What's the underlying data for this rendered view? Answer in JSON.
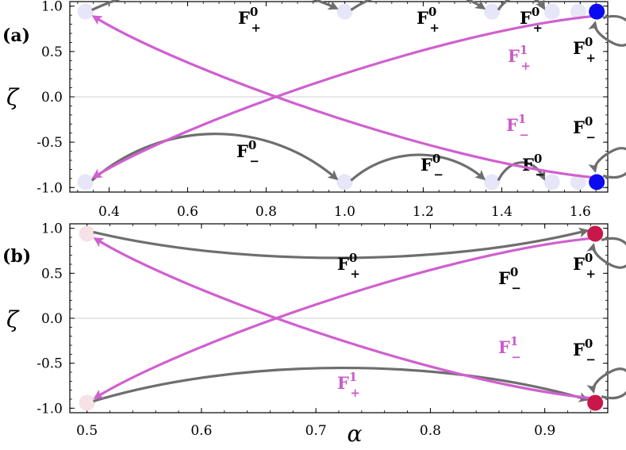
{
  "chart_data": [
    {
      "type": "scatter",
      "panel": "(a)",
      "xlabel": "",
      "ylabel": "ζ",
      "xlim": [
        0.3,
        1.67
      ],
      "ylim": [
        -1.05,
        1.05
      ],
      "xticks": [
        "0.4",
        "0.6",
        "0.8",
        "1.0",
        "1.2",
        "1.4",
        "1.6"
      ],
      "yticks": [
        "1.0",
        "0.5",
        "0.0",
        "-0.5",
        "-1.0"
      ],
      "color": "#0b0bf0",
      "faded_color": "#e6e6f8",
      "faded_points": [
        {
          "x": 0.34,
          "y": 0.94
        },
        {
          "x": 1.0,
          "y": 0.94
        },
        {
          "x": 1.375,
          "y": 0.94
        },
        {
          "x": 1.528,
          "y": 0.94
        },
        {
          "x": 1.595,
          "y": 0.94
        },
        {
          "x": 0.34,
          "y": -0.94
        },
        {
          "x": 1.0,
          "y": -0.94
        },
        {
          "x": 1.375,
          "y": -0.94
        },
        {
          "x": 1.528,
          "y": -0.94
        },
        {
          "x": 1.595,
          "y": -0.94
        }
      ],
      "fixed_points": [
        {
          "x": 1.642,
          "y": 0.94
        },
        {
          "x": 1.642,
          "y": -0.94
        }
      ],
      "transitions": [
        {
          "op": "F",
          "sup": "0",
          "sub": "+",
          "from": [
            0.34,
            0.94
          ],
          "to": [
            1.0,
            0.94
          ]
        },
        {
          "op": "F",
          "sup": "0",
          "sub": "+",
          "from": [
            1.0,
            0.94
          ],
          "to": [
            1.375,
            0.94
          ]
        },
        {
          "op": "F",
          "sup": "0",
          "sub": "+",
          "from": [
            1.375,
            0.94
          ],
          "to": [
            1.528,
            0.94
          ]
        },
        {
          "op": "F",
          "sup": "0",
          "sub": "−",
          "from": [
            0.34,
            -0.94
          ],
          "to": [
            1.0,
            -0.94
          ]
        },
        {
          "op": "F",
          "sup": "0",
          "sub": "−",
          "from": [
            1.0,
            -0.94
          ],
          "to": [
            1.375,
            -0.94
          ]
        },
        {
          "op": "F",
          "sup": "0",
          "sub": "−",
          "from": [
            1.375,
            -0.94
          ],
          "to": [
            1.528,
            -0.94
          ]
        },
        {
          "op": "F",
          "sup": "1",
          "sub": "+",
          "from": [
            1.642,
            0.94
          ],
          "to": [
            0.34,
            -0.94
          ]
        },
        {
          "op": "F",
          "sup": "1",
          "sub": "−",
          "from": [
            1.642,
            -0.94
          ],
          "to": [
            0.34,
            0.94
          ]
        },
        {
          "op": "F",
          "sup": "0",
          "sub": "+",
          "from": [
            1.642,
            0.94
          ],
          "to": [
            1.642,
            0.94
          ]
        },
        {
          "op": "F",
          "sup": "0",
          "sub": "−",
          "from": [
            1.642,
            -0.94
          ],
          "to": [
            1.642,
            -0.94
          ]
        }
      ]
    },
    {
      "type": "scatter",
      "panel": "(b)",
      "xlabel": "α",
      "ylabel": "ζ",
      "xlim": [
        0.485,
        0.955
      ],
      "ylim": [
        -1.05,
        1.05
      ],
      "xticks": [
        "0.5",
        "0.6",
        "0.7",
        "0.8",
        "0.9"
      ],
      "yticks": [
        "1.0",
        "0.5",
        "0.0",
        "-0.5",
        "-1.0"
      ],
      "color": "#c8174a",
      "faded_color": "#f6e1e6",
      "faded_points": [
        {
          "x": 0.5,
          "y": 0.94
        },
        {
          "x": 0.5,
          "y": -0.94
        }
      ],
      "fixed_points": [
        {
          "x": 0.944,
          "y": 0.94
        },
        {
          "x": 0.944,
          "y": -0.94
        }
      ],
      "transitions": [
        {
          "op": "F",
          "sup": "0",
          "sub": "+",
          "from": [
            0.5,
            0.94
          ],
          "to": [
            0.944,
            0.94
          ]
        },
        {
          "op": "F",
          "sup": "0",
          "sub": "−",
          "from": [
            0.5,
            -0.94
          ],
          "to": [
            0.944,
            -0.94
          ]
        },
        {
          "op": "F",
          "sup": "1",
          "sub": "+",
          "from": [
            0.944,
            0.94
          ],
          "to": [
            0.5,
            -0.94
          ]
        },
        {
          "op": "F",
          "sup": "1",
          "sub": "−",
          "from": [
            0.944,
            -0.94
          ],
          "to": [
            0.5,
            0.94
          ]
        },
        {
          "op": "F",
          "sup": "0",
          "sub": "+",
          "from": [
            0.944,
            0.94
          ],
          "to": [
            0.944,
            0.94
          ]
        },
        {
          "op": "F",
          "sup": "0",
          "sub": "−",
          "from": [
            0.944,
            -0.94
          ],
          "to": [
            0.944,
            -0.94
          ]
        }
      ]
    }
  ],
  "colors": {
    "f0_arrow": "#6e6e6e",
    "f1_arrow": "#d05fd0",
    "f0_label": "#000000",
    "f1_label": "#c85cc8"
  }
}
